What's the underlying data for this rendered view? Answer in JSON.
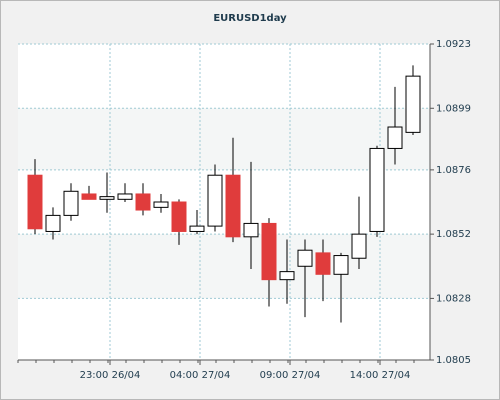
{
  "chart_data": {
    "type": "candlestick",
    "title": "EURUSD1day",
    "categories": [
      null,
      null,
      null,
      null,
      "23:00 26/04",
      null,
      null,
      null,
      null,
      "04:00 27/04",
      null,
      null,
      null,
      null,
      "09:00 27/04",
      null,
      null,
      null,
      null,
      "14:00 27/04",
      null,
      null
    ],
    "open": [
      1.0874,
      1.0853,
      1.0859,
      1.0867,
      1.0865,
      1.0865,
      1.0867,
      1.0862,
      1.0864,
      1.0853,
      1.0855,
      1.0874,
      1.0851,
      1.0856,
      1.0835,
      1.084,
      1.0845,
      1.0837,
      1.0843,
      1.0853,
      1.0884,
      1.089
    ],
    "high": [
      1.088,
      1.0862,
      1.0871,
      1.087,
      1.0875,
      1.0871,
      1.0871,
      1.0867,
      1.0865,
      1.0861,
      1.0878,
      1.0888,
      1.0879,
      1.0858,
      1.085,
      1.085,
      1.085,
      1.0845,
      1.0866,
      1.0885,
      1.0907,
      1.0915
    ],
    "low": [
      1.0852,
      1.085,
      1.0857,
      1.0865,
      1.086,
      1.0864,
      1.0859,
      1.086,
      1.0848,
      1.0852,
      1.0853,
      1.0849,
      1.0839,
      1.0825,
      1.0826,
      1.0821,
      1.0827,
      1.0819,
      1.0839,
      1.0851,
      1.0878,
      1.0889
    ],
    "close": [
      1.0854,
      1.0859,
      1.0868,
      1.0865,
      1.0866,
      1.0867,
      1.0861,
      1.0864,
      1.0853,
      1.0855,
      1.0874,
      1.0851,
      1.0856,
      1.0835,
      1.0838,
      1.0846,
      1.0837,
      1.0844,
      1.0852,
      1.0884,
      1.0892,
      1.0911
    ],
    "up_color": "#ffffff",
    "down_color": "#e03c3c",
    "ylim": [
      1.0805,
      1.0923
    ],
    "yticks": [
      1.0805,
      1.0828,
      1.0852,
      1.0876,
      1.0899,
      1.0923
    ],
    "grid": true
  }
}
